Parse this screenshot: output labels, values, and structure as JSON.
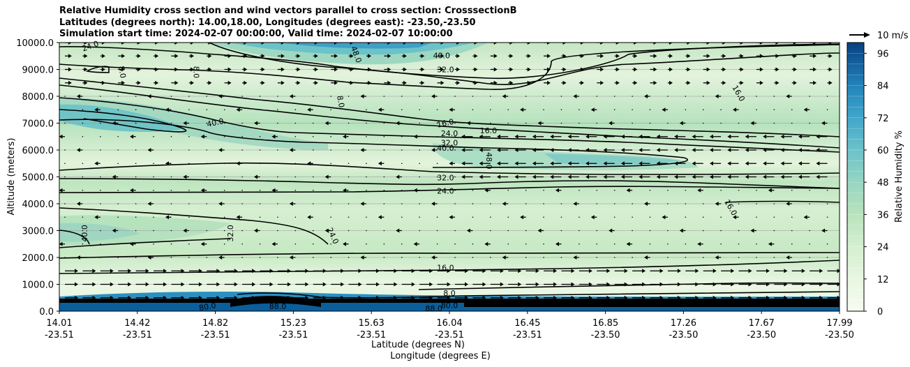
{
  "titles": {
    "line1": "Relative Humidity cross section and wind vectors parallel to cross section: CrosssectionB",
    "line2": "Latitudes (degrees north): 14.00,18.00, Longitudes (degrees east): -23.50,-23.50",
    "line3": "Simulation start time: 2024-02-07 00:00:00, Valid time: 2024-02-07 10:00:00"
  },
  "chart_data": {
    "type": "heatmap",
    "title": "Relative Humidity cross section and wind vectors parallel to cross section: CrosssectionB",
    "ylabel": "Altitude (meters)",
    "xlabel_lat": "Latitude (degrees N)",
    "xlabel_lon": "Longitude (degrees E)",
    "ylim": [
      0,
      10000
    ],
    "yticks": [
      {
        "value": 0,
        "label": "0.0"
      },
      {
        "value": 1000,
        "label": "1000.0"
      },
      {
        "value": 2000,
        "label": "2000.0"
      },
      {
        "value": 3000,
        "label": "3000.0"
      },
      {
        "value": 4000,
        "label": "4000.0"
      },
      {
        "value": 5000,
        "label": "5000.0"
      },
      {
        "value": 6000,
        "label": "6000.0"
      },
      {
        "value": 7000,
        "label": "7000.0"
      },
      {
        "value": 8000,
        "label": "8000.0"
      },
      {
        "value": 9000,
        "label": "9000.0"
      },
      {
        "value": 10000,
        "label": "10000.0"
      }
    ],
    "xticks": [
      {
        "frac": 0.0,
        "lat": "14.01",
        "lon": "-23.51"
      },
      {
        "frac": 0.1,
        "lat": "14.42",
        "lon": "-23.51"
      },
      {
        "frac": 0.2,
        "lat": "14.82",
        "lon": "-23.51"
      },
      {
        "frac": 0.3,
        "lat": "15.23",
        "lon": "-23.51"
      },
      {
        "frac": 0.4,
        "lat": "15.63",
        "lon": "-23.51"
      },
      {
        "frac": 0.5,
        "lat": "16.04",
        "lon": "-23.51"
      },
      {
        "frac": 0.6,
        "lat": "16.45",
        "lon": "-23.51"
      },
      {
        "frac": 0.7,
        "lat": "16.85",
        "lon": "-23.50"
      },
      {
        "frac": 0.8,
        "lat": "17.26",
        "lon": "-23.50"
      },
      {
        "frac": 0.9,
        "lat": "17.67",
        "lon": "-23.50"
      },
      {
        "frac": 1.0,
        "lat": "17.99",
        "lon": "-23.50"
      }
    ],
    "colorbar": {
      "label": "Relative Humidity %",
      "min": 0,
      "max": 100,
      "levels": 25,
      "ticks": [
        0,
        12,
        24,
        36,
        48,
        60,
        72,
        84,
        96
      ]
    },
    "quiver_key": {
      "label": "10 m/s",
      "speed": 10
    },
    "grid": "horizontal",
    "contour_labels": [
      {
        "text": "24.0",
        "frac": 0.04,
        "alt": 9850,
        "rot": -20
      },
      {
        "text": "8.0",
        "frac": 0.08,
        "alt": 8900,
        "rot": 80
      },
      {
        "text": "8.0",
        "frac": 0.175,
        "alt": 8900,
        "rot": 90
      },
      {
        "text": "8.0",
        "frac": 0.36,
        "alt": 7800,
        "rot": 80
      },
      {
        "text": "48.0",
        "frac": 0.38,
        "alt": 9550,
        "rot": 70
      },
      {
        "text": "40.0",
        "frac": 0.49,
        "alt": 9500,
        "rot": 0
      },
      {
        "text": "32.0",
        "frac": 0.495,
        "alt": 8980,
        "rot": 0
      },
      {
        "text": "40.0",
        "frac": 0.2,
        "alt": 7000,
        "rot": -12
      },
      {
        "text": "16.0",
        "frac": 0.495,
        "alt": 6980,
        "rot": -12
      },
      {
        "text": "24.0",
        "frac": 0.5,
        "alt": 6600,
        "rot": 0
      },
      {
        "text": "32.0",
        "frac": 0.5,
        "alt": 6250,
        "rot": 0
      },
      {
        "text": "40.0",
        "frac": 0.495,
        "alt": 6050,
        "rot": 0
      },
      {
        "text": "16.0",
        "frac": 0.55,
        "alt": 6700,
        "rot": 0
      },
      {
        "text": "48.0",
        "frac": 0.55,
        "alt": 5600,
        "rot": 90
      },
      {
        "text": "16.0",
        "frac": 0.87,
        "alt": 8100,
        "rot": 60
      },
      {
        "text": "32.0",
        "frac": 0.495,
        "alt": 4950,
        "rot": 0
      },
      {
        "text": "24.0",
        "frac": 0.495,
        "alt": 4450,
        "rot": 0
      },
      {
        "text": "16.0",
        "frac": 0.86,
        "alt": 3850,
        "rot": 60
      },
      {
        "text": "40.0",
        "frac": 0.033,
        "alt": 2900,
        "rot": -90
      },
      {
        "text": "32.0",
        "frac": 0.22,
        "alt": 2900,
        "rot": -90
      },
      {
        "text": "24.0",
        "frac": 0.35,
        "alt": 2800,
        "rot": 65
      },
      {
        "text": "16.0",
        "frac": 0.495,
        "alt": 1600,
        "rot": 0
      },
      {
        "text": "8.0",
        "frac": 0.5,
        "alt": 650,
        "rot": 0
      },
      {
        "text": "88.0",
        "frac": 0.28,
        "alt": 150,
        "rot": 0
      },
      {
        "text": "88.0",
        "frac": 0.48,
        "alt": 80,
        "rot": 0
      },
      {
        "text": "80.0",
        "frac": 0.19,
        "alt": 150,
        "rot": -10
      },
      {
        "text": "80.0",
        "frac": 0.5,
        "alt": 200,
        "rot": 0
      }
    ]
  }
}
